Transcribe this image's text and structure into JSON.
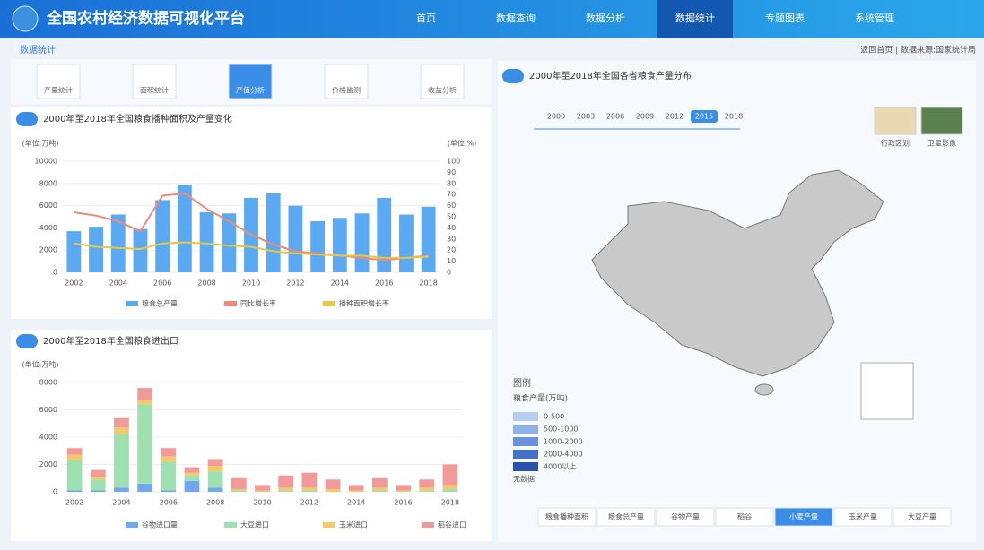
{
  "header": {
    "title": "全国农村经济数据可视化平台",
    "nav": [
      "首页",
      "数据查询",
      "数据分析",
      "数据统计",
      "专题图表",
      "系统管理"
    ],
    "active": 3
  },
  "section": "数据统计",
  "top_link": "返回首页 | 数据来源:国家统计局",
  "toolbar": [
    "产量统计",
    "面积统计",
    "产值分析",
    "价格监测",
    "收益分析"
  ],
  "toolbar_active": 2,
  "chart_data": [
    {
      "type": "combo",
      "title": "2000年至2018年全国粮食播种面积及产量变化",
      "y_label": "(单位:万吨)",
      "y2_label": "(单位:%)",
      "categories": [
        "2002",
        null,
        "2004",
        null,
        "2006",
        null,
        "2008",
        null,
        "2010",
        null,
        "2012",
        null,
        "2014",
        null,
        "2016",
        null,
        "2018"
      ],
      "ylim": [
        0,
        10000
      ],
      "yticks": [
        0,
        2000,
        4000,
        6000,
        8000,
        10000
      ],
      "y2lim": [
        0,
        100
      ],
      "y2ticks": [
        0,
        10,
        20,
        30,
        40,
        50,
        60,
        70,
        80,
        90,
        100
      ],
      "grid": true,
      "series": [
        {
          "name": "粮食总产量",
          "kind": "bar",
          "color": "#5aa9f2",
          "values": [
            3700,
            4100,
            5200,
            3900,
            6500,
            7900,
            5400,
            5300,
            6700,
            7100,
            6000,
            4600,
            4900,
            5300,
            6700,
            5200,
            5900
          ]
        },
        {
          "name": "同比增长率",
          "kind": "line",
          "axis": "y2",
          "color": "#f08a7a",
          "values": [
            54,
            51,
            46,
            37,
            69,
            71,
            57,
            46,
            34,
            25,
            19,
            17,
            15,
            13,
            11,
            13,
            15
          ]
        },
        {
          "name": "播种面积增长率",
          "kind": "line",
          "axis": "y2",
          "color": "#e8c840",
          "values": [
            26,
            23,
            22,
            21,
            26,
            27,
            26,
            24,
            23,
            19,
            17,
            16,
            15,
            15,
            13,
            13,
            14
          ]
        }
      ]
    },
    {
      "type": "bar",
      "stacked": true,
      "title": "2000年至2018年全国粮食进出口",
      "y_label": "(单位:万吨)",
      "categories": [
        "2002",
        null,
        "2004",
        null,
        "2006",
        null,
        "2008",
        null,
        "2010",
        null,
        "2012",
        null,
        "2014",
        null,
        "2016",
        null,
        "2018"
      ],
      "ylim": [
        0,
        8000
      ],
      "yticks": [
        0,
        2000,
        4000,
        6000,
        8000
      ],
      "grid": true,
      "series": [
        {
          "name": "谷物进口量",
          "color": "#6fa8f0",
          "values": [
            100,
            100,
            300,
            600,
            100,
            800,
            300,
            0,
            0,
            0,
            0,
            0,
            0,
            0,
            0,
            0,
            0
          ]
        },
        {
          "name": "大豆进口",
          "color": "#9fe0b0",
          "values": [
            2200,
            800,
            3900,
            5800,
            2100,
            400,
            1200,
            100,
            0,
            100,
            100,
            0,
            0,
            100,
            0,
            100,
            200
          ]
        },
        {
          "name": "玉米进口",
          "color": "#f5c86a",
          "values": [
            400,
            200,
            500,
            300,
            400,
            200,
            400,
            100,
            100,
            200,
            200,
            200,
            100,
            200,
            100,
            200,
            300
          ]
        },
        {
          "name": "稻谷进口",
          "color": "#f29a9a",
          "values": [
            500,
            500,
            700,
            900,
            600,
            400,
            500,
            800,
            400,
            900,
            1100,
            700,
            400,
            700,
            400,
            600,
            1500
          ]
        }
      ]
    }
  ],
  "map": {
    "title": "2000年至2018年全国各省粮食产量分布",
    "timeline": [
      "2000",
      "2003",
      "2006",
      "2009",
      "2012",
      "2015",
      "2018"
    ],
    "timeline_active": 5,
    "thumbs": [
      "行政区划",
      "卫星影像"
    ],
    "legend_title": "图例",
    "legend_sub": "粮食产量(万吨)",
    "bins": [
      {
        "label": "0-500",
        "color": "#b8cdf2"
      },
      {
        "label": "500-1000",
        "color": "#8fb0ea"
      },
      {
        "label": "1000-2000",
        "color": "#6a90de"
      },
      {
        "label": "2000-4000",
        "color": "#4470cc"
      },
      {
        "label": "4000以上",
        "color": "#2a50b0"
      }
    ],
    "no_data": "无数据",
    "tabs": [
      "粮食播种面积",
      "粮食总产量",
      "谷物产量",
      "稻谷",
      "小麦产量",
      "玉米产量",
      "大豆产量"
    ],
    "tab_active": 4
  }
}
